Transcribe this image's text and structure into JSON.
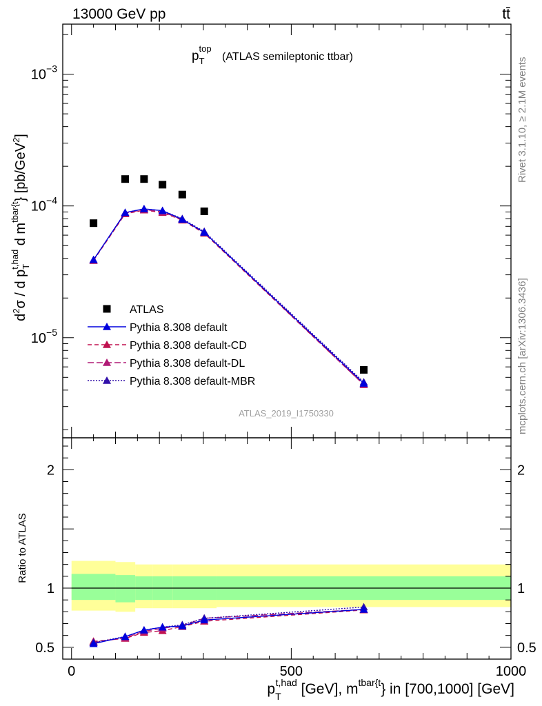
{
  "header": {
    "left": "13000 GeV pp",
    "right": "tt̄"
  },
  "side": {
    "rivet": "Rivet 3.1.10, ≥ 2.1M events",
    "mcplots": "mcplots.cern.ch [arXiv:1306.3436]"
  },
  "colors": {
    "data": "#000000",
    "default": "#0000dd",
    "cd": "#c0114f",
    "dl": "#b01a75",
    "mbr": "#3311aa",
    "band_inner": "#99ff99",
    "band_outer": "#ffff99"
  },
  "chart_data": {
    "type": "scatter",
    "title_main": "p",
    "title_sup": "top",
    "title_sub": "T",
    "title_rest": "(ATLAS semileptonic ttbar)",
    "analysis_tag": "ATLAS_2019_I1750330",
    "xlim": [
      -20,
      1000
    ],
    "main_ylim_log10": [
      -5.76,
      -2.62
    ],
    "main_yscale": "log",
    "ratio_ylim": [
      0.4,
      2.27
    ],
    "ylabel_main": "d²σ / d p_T^{t,had} d m^{tbar{t}} [pb/GeV²]",
    "ylabel_ratio": "Ratio to ATLAS",
    "xlabel": "p_T^{t,had} [GeV], m^{tbar{t}} in [700,1000] [GeV]",
    "x_ticks": [
      0,
      500,
      1000
    ],
    "main_y_ticks": [
      {
        "value": 0.001,
        "label_base": "10",
        "label_exp": "−3"
      },
      {
        "value": 0.0001,
        "label_base": "10",
        "label_exp": "−4"
      },
      {
        "value": 1e-05,
        "label_base": "10",
        "label_exp": "−5"
      }
    ],
    "ratio_y_ticks": [
      0.5,
      1,
      2
    ],
    "ratio_tick_labels": [
      "0.5",
      "1",
      "2"
    ],
    "legend": [
      {
        "label": "ATLAS",
        "series": "data"
      },
      {
        "label": "Pythia 8.308 default",
        "series": "default"
      },
      {
        "label": "Pythia 8.308 default-CD",
        "series": "cd"
      },
      {
        "label": "Pythia 8.308 default-DL",
        "series": "dl"
      },
      {
        "label": "Pythia 8.308 default-MBR",
        "series": "mbr"
      }
    ],
    "bins": [
      0,
      100,
      145,
      185,
      230,
      275,
      330,
      1000
    ],
    "x": [
      50,
      122,
      165,
      207,
      252,
      302,
      665
    ],
    "data": [
      7.4e-05,
      0.00016,
      0.00016,
      0.000145,
      0.000122,
      9.1e-05,
      5.7e-06
    ],
    "series": [
      {
        "name": "Pythia 8.308 default",
        "key": "default",
        "values": [
          3.9e-05,
          8.9e-05,
          9.5e-05,
          9.2e-05,
          7.9e-05,
          6.3e-05,
          4.5e-06
        ],
        "ratio": [
          0.53,
          0.59,
          0.645,
          0.67,
          0.68,
          0.73,
          0.82
        ]
      },
      {
        "name": "Pythia 8.308 default-CD",
        "key": "cd",
        "values": [
          3.85e-05,
          8.7e-05,
          9.3e-05,
          8.9e-05,
          7.8e-05,
          6.2e-05,
          4.4e-06
        ],
        "ratio": [
          0.55,
          0.575,
          0.625,
          0.64,
          0.675,
          0.72,
          0.815
        ]
      },
      {
        "name": "Pythia 8.308 default-DL",
        "key": "dl",
        "values": [
          3.9e-05,
          8.8e-05,
          9.4e-05,
          9e-05,
          7.9e-05,
          6.3e-05,
          4.4e-06
        ],
        "ratio": [
          0.54,
          0.58,
          0.635,
          0.66,
          0.685,
          0.745,
          0.82
        ]
      },
      {
        "name": "Pythia 8.308 default-MBR",
        "key": "mbr",
        "values": [
          3.9e-05,
          8.9e-05,
          9.5e-05,
          9.2e-05,
          8e-05,
          6.4e-05,
          4.6e-06
        ],
        "ratio": [
          0.54,
          0.59,
          0.645,
          0.67,
          0.69,
          0.745,
          0.84
        ]
      }
    ],
    "band_inner": [
      [
        0.9,
        1.12
      ],
      [
        0.88,
        1.11
      ],
      [
        0.9,
        1.1
      ],
      [
        0.9,
        1.1
      ],
      [
        0.9,
        1.1
      ],
      [
        0.9,
        1.1
      ],
      [
        0.9,
        1.1
      ]
    ],
    "band_outer": [
      [
        0.81,
        1.23
      ],
      [
        0.8,
        1.22
      ],
      [
        0.83,
        1.2
      ],
      [
        0.83,
        1.2
      ],
      [
        0.83,
        1.2
      ],
      [
        0.83,
        1.2
      ],
      [
        0.84,
        1.2
      ]
    ]
  }
}
